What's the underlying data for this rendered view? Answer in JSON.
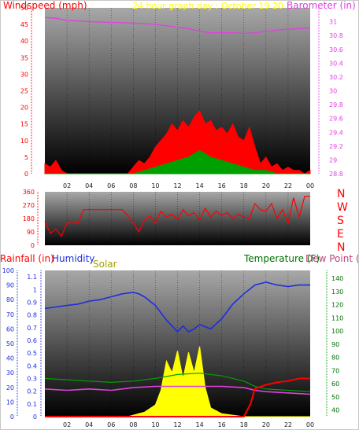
{
  "colors": {
    "wind": "#ff0000",
    "gust": "#ff0000",
    "barometer": "#e040e0",
    "humidity": "#1e2de0",
    "solar": "#ffff00",
    "rain": "#ff0000",
    "temperature": "#00a000",
    "dewpoint": "#e040e0",
    "direction": "#ff0000",
    "wind_label": "#ff0000",
    "title": "#ffff00",
    "baro_label": "#e040e0",
    "humidity_label": "#1e2de0",
    "solar_label": "#a0a000",
    "temperature_label": "#007000",
    "dewpoint_label": "#c04080",
    "rain_label": "#ff0000"
  },
  "x_ticks": [
    "02",
    "04",
    "06",
    "08",
    "10",
    "12",
    "14",
    "16",
    "18",
    "20",
    "22",
    "00"
  ],
  "chart_data": [
    {
      "id": "wind-chart",
      "type": "line",
      "title": "24 hour graph day : October 19 20",
      "ylabel": "Windspeed (mph)",
      "y2label": "Barometer (in)",
      "ylim": [
        0,
        50
      ],
      "y2lim": [
        28.8,
        31.2
      ],
      "yticks": [
        "0",
        "5",
        "10",
        "15",
        "20",
        "25",
        "30",
        "35",
        "40",
        "45",
        "50"
      ],
      "y2ticks": [
        "28.8",
        "29",
        "29.2",
        "29.4",
        "29.6",
        "29.8",
        "30",
        "30.2",
        "30.4",
        "30.6",
        "30.8",
        "31"
      ],
      "xlim": [
        0,
        24
      ],
      "series": [
        {
          "key": "wind_gust",
          "x": [
            0,
            0.5,
            1,
            1.5,
            2,
            3,
            4,
            5,
            6,
            7,
            7.5,
            8,
            8.5,
            9,
            9.5,
            10,
            10.5,
            11,
            11.5,
            12,
            12.5,
            13,
            13.5,
            14,
            14.5,
            15,
            15.5,
            16,
            16.5,
            17,
            17.5,
            18,
            18.5,
            19,
            19.5,
            20,
            20.5,
            21,
            21.5,
            22,
            22.5,
            23,
            23.5,
            24
          ],
          "values": [
            3,
            2,
            4,
            1,
            0,
            0,
            0,
            0,
            0,
            0,
            0,
            2,
            4,
            3,
            5,
            8,
            10,
            12,
            15,
            13,
            16,
            14,
            17,
            19,
            15,
            16,
            13,
            14,
            12,
            15,
            11,
            10,
            14,
            8,
            3,
            5,
            2,
            3,
            1,
            2,
            1,
            1,
            0,
            1
          ]
        },
        {
          "key": "wind_avg",
          "x": [
            0,
            8,
            9,
            10,
            11,
            12,
            13,
            14,
            14.5,
            15,
            16,
            17,
            18,
            19,
            20,
            21,
            24
          ],
          "values": [
            0,
            0,
            1,
            2,
            3,
            4,
            5,
            7,
            6,
            5,
            4,
            3,
            2,
            1,
            1,
            0,
            0
          ]
        },
        {
          "key": "barometer",
          "x": [
            0,
            1,
            2,
            4,
            6,
            8,
            10,
            11,
            12,
            13,
            14,
            15,
            16,
            17,
            18,
            19,
            20,
            21,
            22,
            23,
            24
          ],
          "values": [
            31.06,
            31.05,
            31.02,
            31.0,
            30.99,
            30.98,
            30.96,
            30.94,
            30.92,
            30.9,
            30.86,
            30.84,
            30.84,
            30.84,
            30.83,
            30.84,
            30.86,
            30.88,
            30.89,
            30.9,
            30.91
          ]
        }
      ]
    },
    {
      "id": "direction-chart",
      "type": "line",
      "ylim": [
        0,
        360
      ],
      "yticks": [
        "0",
        "90",
        "180",
        "270",
        "360"
      ],
      "compass": [
        "N",
        "W",
        "S",
        "E",
        "N"
      ],
      "xlim": [
        0,
        24
      ],
      "series": [
        {
          "key": "direction",
          "x": [
            0,
            0.5,
            1,
            1.5,
            2,
            3,
            3.5,
            4,
            5,
            6,
            7,
            7.5,
            8,
            8.5,
            9,
            9.5,
            10,
            10.5,
            11,
            11.5,
            12,
            12.5,
            13,
            13.5,
            14,
            14.5,
            15,
            15.5,
            16,
            16.5,
            17,
            17.5,
            18,
            18.5,
            19,
            19.5,
            20,
            20.5,
            21,
            21.5,
            22,
            22.5,
            23,
            23.5,
            24
          ],
          "values": [
            160,
            80,
            110,
            60,
            150,
            150,
            240,
            240,
            240,
            240,
            240,
            200,
            150,
            90,
            170,
            200,
            150,
            230,
            190,
            210,
            170,
            240,
            200,
            220,
            170,
            250,
            190,
            230,
            200,
            220,
            180,
            210,
            190,
            180,
            280,
            240,
            230,
            280,
            180,
            240,
            150,
            320,
            190,
            330,
            330
          ]
        }
      ]
    },
    {
      "id": "humidity-chart",
      "type": "line",
      "ylabels": [
        "Rainfall (in)",
        "Humidity",
        "Solar"
      ],
      "y2labels": [
        "Temperature (F)",
        "Dew Point (F)"
      ],
      "rain_lim": [
        0,
        1.15
      ],
      "rain_ticks": [
        "0",
        "0.1",
        "0.2",
        "0.3",
        "0.4",
        "0.5",
        "0.6",
        "0.7",
        "0.8",
        "0.9",
        "1",
        "1.1"
      ],
      "humidity_lim": [
        0,
        100
      ],
      "humidity_ticks": [
        "0",
        "10",
        "20",
        "30",
        "40",
        "50",
        "60",
        "70",
        "80",
        "90",
        "100"
      ],
      "temp_lim": [
        35,
        146
      ],
      "temp_ticks": [
        "40",
        "50",
        "60",
        "70",
        "80",
        "90",
        "100",
        "110",
        "120",
        "130",
        "140"
      ],
      "xlim": [
        0,
        24
      ],
      "series": [
        {
          "key": "humidity",
          "x": [
            0,
            1,
            2,
            3,
            4,
            5,
            6,
            7,
            8,
            8.5,
            9,
            10,
            11,
            12,
            12.5,
            13,
            13.5,
            14,
            15,
            16,
            17,
            18,
            19,
            20,
            21,
            22,
            23,
            24
          ],
          "values": [
            74,
            75,
            76,
            77,
            79,
            80,
            82,
            84,
            85,
            84,
            82,
            76,
            66,
            58,
            62,
            58,
            60,
            63,
            60,
            67,
            77,
            84,
            90,
            92,
            90,
            89,
            90,
            90
          ]
        },
        {
          "key": "temperature",
          "x": [
            0,
            2,
            4,
            6,
            8,
            10,
            12,
            14,
            16,
            18,
            19,
            20,
            22,
            24
          ],
          "values": [
            64,
            63,
            62,
            61,
            62,
            64,
            67,
            68,
            66,
            62,
            58,
            56,
            55,
            54
          ]
        },
        {
          "key": "dewpoint",
          "x": [
            0,
            2,
            4,
            6,
            8,
            10,
            12,
            14,
            16,
            18,
            19,
            20,
            22,
            24
          ],
          "values": [
            56,
            55,
            56,
            55,
            57,
            58,
            58,
            58,
            58,
            57,
            55,
            54,
            53,
            52
          ]
        },
        {
          "key": "solar",
          "x": [
            0,
            7.5,
            8,
            9,
            10,
            10.5,
            11,
            11.5,
            12,
            12.5,
            13,
            13.5,
            14,
            14.5,
            15,
            16,
            17,
            18,
            24
          ],
          "values": [
            0,
            0,
            1,
            3,
            8,
            18,
            38,
            30,
            45,
            26,
            44,
            30,
            48,
            20,
            6,
            2,
            1,
            0,
            0
          ]
        },
        {
          "key": "rain",
          "x": [
            0,
            18,
            18.6,
            19,
            20,
            21,
            22,
            23,
            24
          ],
          "values": [
            0,
            0,
            0.1,
            0.22,
            0.25,
            0.27,
            0.28,
            0.3,
            0.3
          ]
        }
      ]
    }
  ]
}
